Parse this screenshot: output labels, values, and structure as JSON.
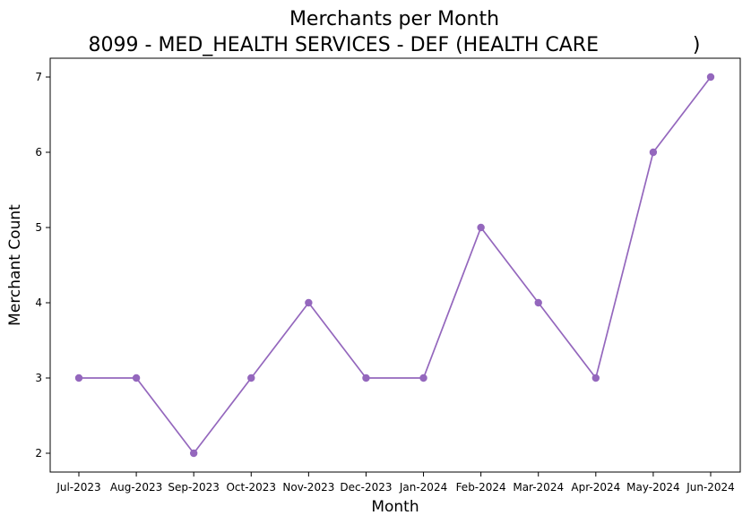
{
  "chart_data": {
    "type": "line",
    "title": "Merchants per Month",
    "subtitle": "8099 - MED_HEALTH SERVICES - DEF (HEALTH CARE               )",
    "xlabel": "Month",
    "ylabel": "Merchant Count",
    "categories": [
      "Jul-2023",
      "Aug-2023",
      "Sep-2023",
      "Oct-2023",
      "Nov-2023",
      "Dec-2023",
      "Jan-2024",
      "Feb-2024",
      "Mar-2024",
      "Apr-2024",
      "May-2024",
      "Jun-2024"
    ],
    "series": [
      {
        "values": [
          3,
          3,
          2,
          3,
          4,
          3,
          3,
          5,
          4,
          3,
          6,
          7
        ],
        "color": "#9467bd"
      }
    ],
    "yticks": [
      2,
      3,
      4,
      5,
      6,
      7
    ],
    "ylim": [
      1.75,
      7.25
    ],
    "grid": false,
    "legend": "none"
  }
}
